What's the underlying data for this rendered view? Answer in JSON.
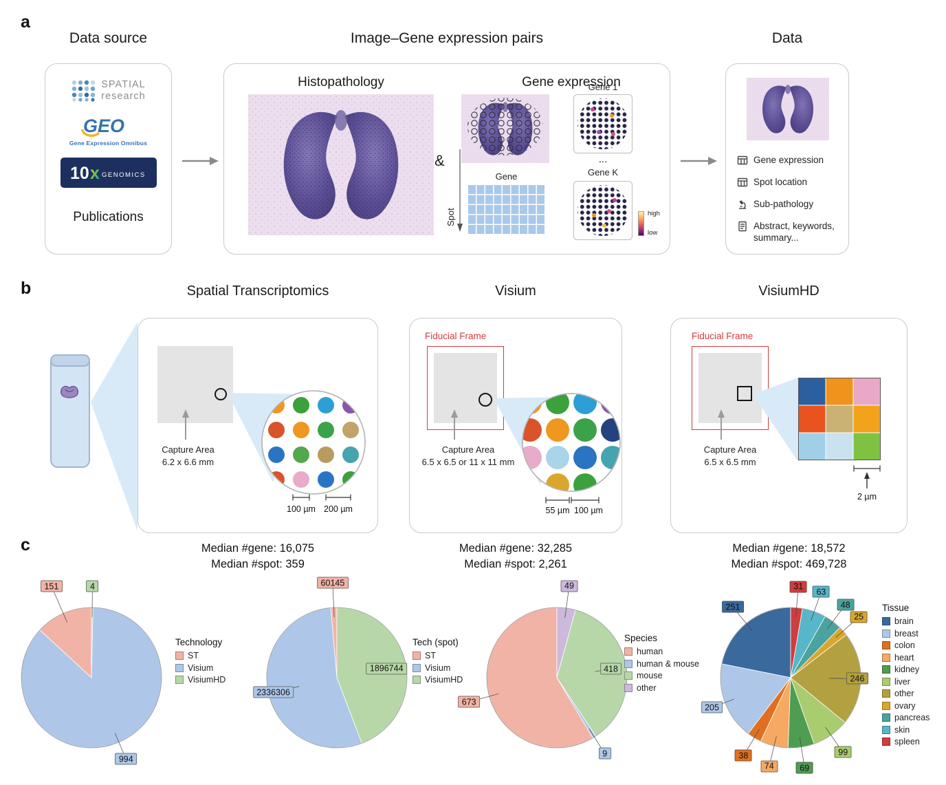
{
  "panels": {
    "a": {
      "label": "a",
      "source_heading": "Data source",
      "data_source": {
        "spatial": {
          "line1": "SPATIAL",
          "line2": "research"
        },
        "geo": {
          "text": "GEO",
          "subtext": "Gene Expression Omnibus"
        },
        "tenx": {
          "number": "10",
          "x": "x",
          "subtext": "GENOMICS"
        },
        "publications": "Publications"
      },
      "pairs": {
        "title": "Image–Gene expression pairs",
        "histopathology": "Histopathology",
        "amp": "&",
        "gene_expression": "Gene expression",
        "gene_axis": "Gene",
        "spot_axis": "Spot",
        "gene1": "Gene 1",
        "ellipsis": "...",
        "geneK": "Gene K",
        "colorbar_high": "high",
        "colorbar_low": "low"
      },
      "data_box": {
        "heading": "Data",
        "items": [
          {
            "icon": "table-icon",
            "label": "Gene expression"
          },
          {
            "icon": "table-icon",
            "label": "Spot location"
          },
          {
            "icon": "microscope-icon",
            "label": "Sub-pathology"
          },
          {
            "icon": "document-icon",
            "label": "Abstract, keywords, summary..."
          }
        ]
      }
    },
    "b": {
      "label": "b",
      "columns": [
        {
          "title": "Spatial Transcriptomics",
          "capture_area": "Capture Area",
          "capture_size": "6.2 x 6.6 mm",
          "scale_labels": [
            "100 µm",
            "200 µm"
          ]
        },
        {
          "title": "Visium",
          "fiducial": "Fiducial Frame",
          "capture_area": "Capture Area",
          "capture_size": "6.5 x 6.5 or 11 x 11 mm",
          "scale_labels": [
            "55 µm",
            "100 µm"
          ]
        },
        {
          "title": "VisiumHD",
          "fiducial": "Fiducial Frame",
          "capture_area": "Capture Area",
          "capture_size": "6.5 x 6.5  mm",
          "scale_labels": [
            "2 µm"
          ]
        }
      ],
      "medians": [
        {
          "gene": "Median #gene: 16,075",
          "spot": "Median #spot: 359"
        },
        {
          "gene": "Median #gene: 32,285",
          "spot": "Median #spot: 2,261"
        },
        {
          "gene": "Median #gene: 18,572",
          "spot": "Median #spot: 469,728"
        }
      ]
    },
    "c": {
      "label": "c"
    }
  },
  "chart_data": [
    {
      "type": "pie",
      "name": "technology-slides",
      "legend_title": "Technology",
      "start_angle_deg": 90,
      "direction": "counterclockwise",
      "segments": [
        {
          "label": "ST",
          "value": 151,
          "color": "#f2b3a7"
        },
        {
          "label": "Visium",
          "value": 994,
          "color": "#aec7e8"
        },
        {
          "label": "VisiumHD",
          "value": 4,
          "color": "#b7d7a8"
        }
      ]
    },
    {
      "type": "pie",
      "name": "technology-spots",
      "legend_title": "Tech (spot)",
      "start_angle_deg": 90,
      "direction": "counterclockwise",
      "segments": [
        {
          "label": "ST",
          "value": 60145,
          "color": "#f2b3a7"
        },
        {
          "label": "Visium",
          "value": 2336306,
          "color": "#aec7e8"
        },
        {
          "label": "VisiumHD",
          "value": 1896744,
          "color": "#b7d7a8"
        }
      ]
    },
    {
      "type": "pie",
      "name": "species",
      "legend_title": "Species",
      "start_angle_deg": 90,
      "direction": "counterclockwise",
      "segments": [
        {
          "label": "human",
          "value": 673,
          "color": "#f2b3a7"
        },
        {
          "label": "human & mouse",
          "value": 9,
          "color": "#aec7e8"
        },
        {
          "label": "mouse",
          "value": 418,
          "color": "#b7d7a8"
        },
        {
          "label": "other",
          "value": 49,
          "color": "#cdb9dd"
        }
      ]
    },
    {
      "type": "pie",
      "name": "tissue",
      "legend_title": "Tissue",
      "start_angle_deg": 90,
      "direction": "counterclockwise",
      "segments": [
        {
          "label": "brain",
          "value": 251,
          "color": "#3a699e"
        },
        {
          "label": "breast",
          "value": 205,
          "color": "#aec7e8"
        },
        {
          "label": "colon",
          "value": 38,
          "color": "#e0701f"
        },
        {
          "label": "heart",
          "value": 74,
          "color": "#f5a962"
        },
        {
          "label": "kidney",
          "value": 69,
          "color": "#4f9d50"
        },
        {
          "label": "liver",
          "value": 99,
          "color": "#a9cc6e"
        },
        {
          "label": "other",
          "value": 246,
          "color": "#b3a041"
        },
        {
          "label": "ovary",
          "value": 25,
          "color": "#d9a62e"
        },
        {
          "label": "pancreas",
          "value": 48,
          "color": "#4aa39e"
        },
        {
          "label": "skin",
          "value": 63,
          "color": "#58b6c9"
        },
        {
          "label": "spleen",
          "value": 31,
          "color": "#cf3d3d"
        }
      ]
    }
  ]
}
